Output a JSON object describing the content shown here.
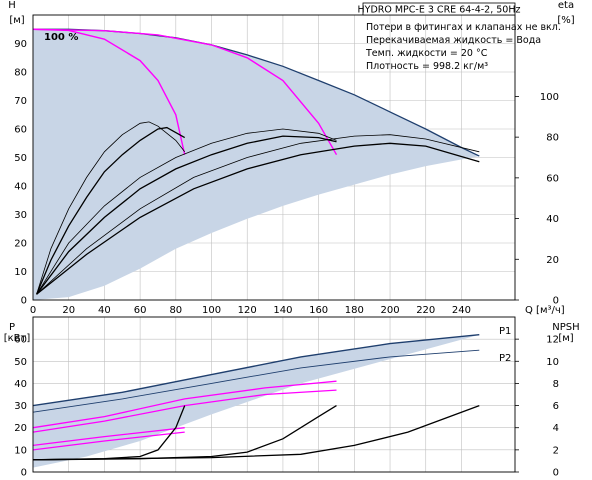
{
  "header": {
    "title": "HYDRO MPC-E 3 CRE 64-4-2, 50Hz",
    "notes": [
      "Потери в фитингах и клапанах не вкл.",
      "Перекачиваемая жидкость = Вода",
      "Темп. жидкости = 20 °C",
      "Плотность = 998.2 кг/м³"
    ]
  },
  "colors": {
    "envelope_fill": "#c8d5e6",
    "max_speed_curve": "#1f3f6e",
    "system_curve": "#ff00ff",
    "eta_curve": "#000000",
    "grid": "#c0c0c0"
  },
  "chart_data": [
    {
      "type": "line",
      "name": "head",
      "ylabel_top": "H",
      "ylabel_unit": "[м]",
      "y2label_top": "eta",
      "y2label_unit": "[%]",
      "xlabel": "Q [м³/ч]",
      "xlim": [
        0,
        270
      ],
      "ylim": [
        0,
        100
      ],
      "y2lim": [
        0,
        140
      ],
      "xticks": [
        0,
        20,
        40,
        60,
        80,
        100,
        120,
        140,
        160,
        180,
        200,
        220,
        240
      ],
      "yticks": [
        0,
        10,
        20,
        30,
        40,
        50,
        60,
        70,
        80,
        90
      ],
      "y2ticks": [
        0,
        20,
        40,
        60,
        80,
        100
      ],
      "grid": true,
      "annotation": "100 %",
      "envelope": {
        "upper": [
          [
            0,
            95
          ],
          [
            20,
            95
          ],
          [
            40,
            94.5
          ],
          [
            60,
            93.5
          ],
          [
            80,
            92
          ],
          [
            100,
            89.5
          ],
          [
            120,
            86
          ],
          [
            140,
            82
          ],
          [
            160,
            77
          ],
          [
            180,
            72
          ],
          [
            200,
            66
          ],
          [
            220,
            60
          ],
          [
            240,
            53.5
          ],
          [
            250,
            50.5
          ]
        ],
        "lower": [
          [
            250,
            50.5
          ],
          [
            220,
            47
          ],
          [
            200,
            44
          ],
          [
            180,
            40.5
          ],
          [
            160,
            37
          ],
          [
            140,
            33
          ],
          [
            120,
            28.5
          ],
          [
            100,
            23.5
          ],
          [
            80,
            18
          ],
          [
            60,
            11
          ],
          [
            40,
            5
          ],
          [
            20,
            1
          ],
          [
            0,
            0
          ]
        ]
      },
      "max_speed_curve": [
        [
          0,
          95
        ],
        [
          20,
          95
        ],
        [
          40,
          94.5
        ],
        [
          60,
          93.5
        ],
        [
          80,
          92
        ],
        [
          100,
          89.5
        ],
        [
          120,
          86
        ],
        [
          140,
          82
        ],
        [
          160,
          77
        ],
        [
          180,
          72
        ],
        [
          200,
          66
        ],
        [
          220,
          60
        ],
        [
          240,
          53.5
        ],
        [
          250,
          50.5
        ]
      ],
      "system_curves": [
        [
          [
            0,
            95
          ],
          [
            20,
            94.6
          ],
          [
            40,
            91.5
          ],
          [
            60,
            84
          ],
          [
            70,
            77
          ],
          [
            80,
            65
          ],
          [
            85,
            51
          ]
        ],
        [
          [
            0,
            95
          ],
          [
            40,
            94.5
          ],
          [
            70,
            93
          ],
          [
            100,
            89.5
          ],
          [
            120,
            85
          ],
          [
            140,
            77
          ],
          [
            160,
            62
          ],
          [
            170,
            51
          ]
        ]
      ],
      "eta_curves": [
        [
          [
            2,
            2
          ],
          [
            10,
            18
          ],
          [
            20,
            32
          ],
          [
            30,
            43
          ],
          [
            40,
            52
          ],
          [
            50,
            58
          ],
          [
            60,
            62
          ],
          [
            65,
            62.5
          ],
          [
            70,
            61
          ],
          [
            80,
            56
          ],
          [
            85,
            52
          ]
        ],
        [
          [
            2,
            2
          ],
          [
            10,
            14
          ],
          [
            20,
            26
          ],
          [
            30,
            36
          ],
          [
            40,
            45
          ],
          [
            50,
            51
          ],
          [
            60,
            56
          ],
          [
            70,
            60
          ],
          [
            75,
            60.5
          ],
          [
            85,
            57
          ]
        ],
        [
          [
            2,
            2
          ],
          [
            20,
            20
          ],
          [
            40,
            33
          ],
          [
            60,
            43
          ],
          [
            80,
            50
          ],
          [
            100,
            55
          ],
          [
            120,
            58.5
          ],
          [
            140,
            60
          ],
          [
            160,
            58.5
          ],
          [
            170,
            56
          ]
        ],
        [
          [
            2,
            2
          ],
          [
            20,
            17
          ],
          [
            40,
            29
          ],
          [
            60,
            39
          ],
          [
            80,
            46
          ],
          [
            100,
            51
          ],
          [
            120,
            55
          ],
          [
            140,
            57.5
          ],
          [
            160,
            57
          ],
          [
            170,
            55.5
          ]
        ],
        [
          [
            2,
            2
          ],
          [
            30,
            18
          ],
          [
            60,
            32
          ],
          [
            90,
            43
          ],
          [
            120,
            50
          ],
          [
            150,
            55
          ],
          [
            180,
            57.5
          ],
          [
            200,
            58
          ],
          [
            220,
            56.5
          ],
          [
            250,
            52
          ]
        ],
        [
          [
            2,
            2
          ],
          [
            30,
            16
          ],
          [
            60,
            29
          ],
          [
            90,
            39
          ],
          [
            120,
            46
          ],
          [
            150,
            51
          ],
          [
            180,
            54
          ],
          [
            200,
            55
          ],
          [
            220,
            54
          ],
          [
            250,
            48.5
          ]
        ]
      ]
    },
    {
      "type": "line",
      "name": "power_npsh",
      "ylabel_top": "P",
      "ylabel_unit": "[кВт]",
      "y2label_top": "NPSH",
      "y2label_unit": "[м]",
      "xlim": [
        0,
        270
      ],
      "ylim": [
        0,
        70
      ],
      "y2lim": [
        0,
        14
      ],
      "yticks": [
        0,
        10,
        20,
        30,
        40,
        50,
        60
      ],
      "y2ticks": [
        0,
        2,
        4,
        6,
        8,
        10,
        12
      ],
      "grid": true,
      "envelope": {
        "upper": [
          [
            0,
            30
          ],
          [
            50,
            36
          ],
          [
            100,
            44
          ],
          [
            150,
            52
          ],
          [
            200,
            58
          ],
          [
            250,
            62
          ]
        ],
        "lower": [
          [
            250,
            62
          ],
          [
            200,
            51
          ],
          [
            150,
            40
          ],
          [
            100,
            26
          ],
          [
            60,
            14
          ],
          [
            30,
            7
          ],
          [
            0,
            2
          ]
        ]
      },
      "series": [
        {
          "name": "P1",
          "kind": "max",
          "values": [
            [
              0,
              30
            ],
            [
              50,
              36
            ],
            [
              100,
              44
            ],
            [
              150,
              52
            ],
            [
              200,
              58
            ],
            [
              250,
              62
            ]
          ]
        },
        {
          "name": "P2",
          "kind": "max",
          "values": [
            [
              0,
              27
            ],
            [
              50,
              33
            ],
            [
              100,
              40
            ],
            [
              150,
              47
            ],
            [
              200,
              52
            ],
            [
              250,
              55
            ]
          ]
        },
        {
          "kind": "system",
          "values": [
            [
              0,
              20
            ],
            [
              40,
              25
            ],
            [
              85,
              33
            ],
            [
              130,
              38
            ],
            [
              170,
              41
            ]
          ]
        },
        {
          "kind": "system",
          "values": [
            [
              0,
              18
            ],
            [
              40,
              23
            ],
            [
              85,
              30
            ],
            [
              130,
              35
            ],
            [
              170,
              37
            ]
          ]
        },
        {
          "kind": "system",
          "values": [
            [
              0,
              12
            ],
            [
              40,
              16
            ],
            [
              85,
              20
            ]
          ]
        },
        {
          "kind": "system",
          "values": [
            [
              0,
              10
            ],
            [
              40,
              14
            ],
            [
              85,
              18
            ]
          ]
        },
        {
          "kind": "npsh",
          "values": [
            [
              0,
              1.1
            ],
            [
              40,
              1.2
            ],
            [
              60,
              1.4
            ],
            [
              70,
              2
            ],
            [
              80,
              4
            ],
            [
              85,
              6
            ]
          ]
        },
        {
          "kind": "npsh",
          "values": [
            [
              0,
              1.1
            ],
            [
              60,
              1.2
            ],
            [
              100,
              1.4
            ],
            [
              120,
              1.8
            ],
            [
              140,
              3
            ],
            [
              160,
              5
            ],
            [
              170,
              6
            ]
          ]
        },
        {
          "kind": "npsh",
          "values": [
            [
              0,
              1.1
            ],
            [
              100,
              1.3
            ],
            [
              150,
              1.6
            ],
            [
              180,
              2.4
            ],
            [
              210,
              3.6
            ],
            [
              230,
              4.8
            ],
            [
              250,
              6
            ]
          ]
        }
      ],
      "label_p1": "P1",
      "label_p2": "P2"
    }
  ]
}
